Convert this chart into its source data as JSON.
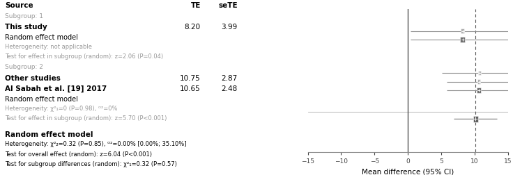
{
  "xlabel": "Mean difference (95% CI)",
  "xlim": [
    -15,
    15
  ],
  "xticks": [
    -15,
    -10,
    -5,
    0,
    5,
    10,
    15
  ],
  "dashed_line_x": 10.17,
  "studies": [
    {
      "te": 8.2,
      "sete": 3.99,
      "row": 8.8,
      "style": "study"
    },
    {
      "te": 8.2,
      "sete": 3.99,
      "row": 8.2,
      "style": "random_subgroup"
    },
    {
      "te": 10.75,
      "sete": 2.87,
      "row": 5.6,
      "style": "study"
    },
    {
      "te": 10.65,
      "sete": 2.48,
      "row": 5.0,
      "style": "study"
    },
    {
      "te": 10.65,
      "sete": 2.48,
      "row": 4.4,
      "style": "random_subgroup"
    },
    {
      "te": 10.17,
      "sete": 1.65,
      "row": 1.5,
      "style": "random_overall"
    }
  ],
  "colors": {
    "study_box": "#b0b0b0",
    "random_subgroup_box": "#707070",
    "random_overall_box": "#606060",
    "ci_line": "#909090",
    "zero_line": "#555555",
    "dashed_line": "#555555"
  }
}
